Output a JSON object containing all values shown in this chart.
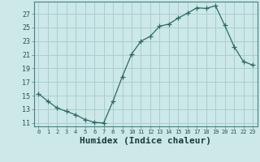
{
  "x": [
    0,
    1,
    2,
    3,
    4,
    5,
    6,
    7,
    8,
    9,
    10,
    11,
    12,
    13,
    14,
    15,
    16,
    17,
    18,
    19,
    20,
    21,
    22,
    23
  ],
  "y": [
    15.3,
    14.2,
    13.2,
    12.7,
    12.2,
    11.5,
    11.1,
    11.0,
    14.2,
    17.8,
    21.1,
    23.0,
    23.7,
    25.2,
    25.5,
    26.4,
    27.1,
    27.9,
    27.8,
    28.2,
    25.3,
    22.2,
    20.0,
    19.5
  ],
  "line_color": "#2d6b5e",
  "marker": "+",
  "bg_color": "#cce8e8",
  "grid_color": "#aacece",
  "xlabel": "Humidex (Indice chaleur)",
  "xlabel_fontsize": 8,
  "xtick_labels": [
    "0",
    "1",
    "2",
    "3",
    "4",
    "5",
    "6",
    "7",
    "8",
    "9",
    "10",
    "11",
    "12",
    "13",
    "14",
    "15",
    "16",
    "17",
    "18",
    "19",
    "20",
    "21",
    "22",
    "23"
  ],
  "ytick_values": [
    11,
    13,
    15,
    17,
    19,
    21,
    23,
    25,
    27
  ],
  "ylim": [
    10.5,
    28.8
  ],
  "xlim": [
    -0.5,
    23.5
  ]
}
